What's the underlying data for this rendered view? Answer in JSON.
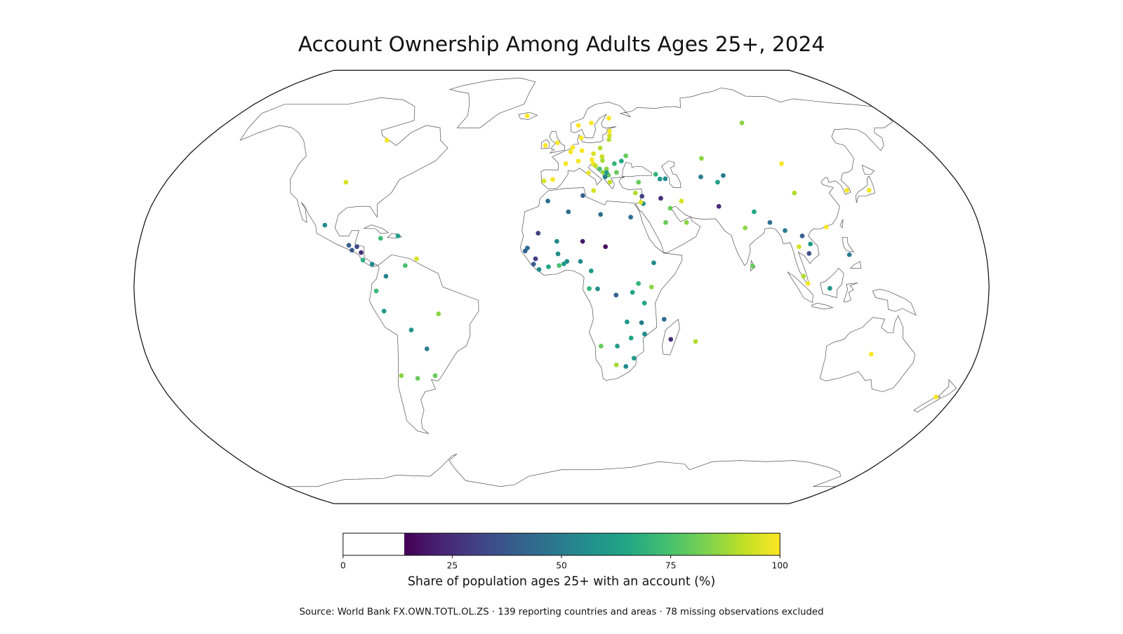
{
  "chart_data": {
    "type": "map",
    "title": "Account Ownership Among Adults Ages 25+, 2024",
    "projection": "robinson",
    "colormap": "viridis",
    "clim": [
      14,
      100
    ],
    "colorbar_lim": [
      0,
      100
    ],
    "colorbar_ticks": [
      0,
      25,
      50,
      75,
      100
    ],
    "colorbar_label": "Share of population ages 25+ with an account (%)",
    "source": "Source: World Bank FX.OWN.TOTL.OL.ZS · 139 reporting countries and areas · 78 missing observations excluded",
    "lon": [
      -88,
      -98,
      -102,
      -90.5,
      -87,
      -89,
      -85,
      -84,
      -80,
      -70,
      -77.3,
      -74,
      -66,
      -61.3,
      -78,
      -75,
      -64,
      -52,
      -58,
      -71,
      -64,
      -56,
      -19,
      -2,
      -8,
      2,
      -4,
      -8,
      4.5,
      5.5,
      10,
      10,
      9,
      16,
      26,
      25,
      24.6,
      24,
      19,
      15.5,
      19.5,
      14.5,
      8,
      12.5,
      15,
      16,
      19.5,
      25,
      25.5,
      21,
      17.8,
      21.7,
      20,
      19.3,
      22,
      28.5,
      31,
      20.9,
      33,
      14.4,
      35,
      43.5,
      45,
      47.5,
      97,
      67,
      64,
      74.5,
      71,
      104,
      104,
      128,
      138,
      35.8,
      36,
      35,
      44,
      53,
      45,
      54,
      47.6,
      30,
      69,
      79,
      84,
      90,
      80.7,
      96,
      101,
      103,
      105,
      106,
      102,
      122,
      113,
      103.8,
      114,
      134,
      172,
      -6,
      3,
      9.5,
      17,
      -10,
      -14.5,
      -15.4,
      -11,
      -11.8,
      -9.5,
      -5.5,
      -2,
      -1.5,
      -1,
      1,
      2.3,
      9,
      8,
      18.7,
      12.5,
      11.7,
      15.2,
      23,
      32.4,
      37.9,
      35,
      39,
      34,
      27.8,
      35.5,
      29.8,
      24,
      17,
      24,
      28.2,
      31.5,
      46.8,
      43.5,
      57.5,
      29.9
    ],
    "lat": [
      55,
      39,
      23,
      15.5,
      15,
      13.7,
      12.8,
      10,
      8.5,
      19,
      18.1,
      4,
      8,
      10.5,
      -1.5,
      -9,
      -16,
      -10,
      -23,
      -33,
      -34,
      -33,
      65,
      54,
      53,
      46,
      40,
      39.5,
      50.5,
      52.2,
      51,
      56,
      61,
      62,
      64,
      58.7,
      56.9,
      55.3,
      52,
      49.8,
      48.7,
      47.5,
      47,
      42.5,
      46,
      45.2,
      47.2,
      46,
      42.7,
      44,
      44,
      41.6,
      41,
      42.7,
      39,
      47,
      49,
      42.6,
      35,
      35.9,
      39,
      42,
      40.2,
      40.3,
      62,
      48,
      41,
      41.5,
      39,
      46,
      35,
      36,
      36,
      33.8,
      31,
      31.5,
      33,
      32,
      24,
      24,
      29.3,
      26,
      30,
      22,
      28,
      24,
      7.8,
      21,
      15,
      19,
      12.5,
      16,
      4,
      12,
      -0.5,
      1.3,
      22.3,
      -25,
      -41,
      32,
      28,
      34,
      27,
      20,
      14.5,
      13.4,
      10.5,
      8.5,
      6.5,
      7.5,
      17,
      12.3,
      8,
      8.6,
      9.5,
      17,
      9.5,
      15,
      6,
      -0.6,
      -0.7,
      -3,
      1.3,
      0,
      -6,
      9,
      -13.3,
      -13,
      -17.5,
      -19,
      -22,
      -22,
      -29,
      -29.6,
      -26.5,
      -19.5,
      -12,
      -20.3,
      -2
    ],
    "values": [
      99,
      95,
      55,
      40,
      33,
      38,
      25,
      68,
      55,
      62,
      72,
      52,
      75,
      95,
      72,
      60,
      58,
      85,
      50,
      85,
      80,
      80,
      100,
      100,
      100,
      99,
      99,
      95,
      99,
      100,
      100,
      100,
      100,
      100,
      100,
      99,
      95,
      90,
      90,
      95,
      93,
      100,
      99,
      97,
      99,
      92,
      88,
      70,
      80,
      85,
      75,
      80,
      50,
      85,
      92,
      65,
      80,
      60,
      90,
      95,
      80,
      70,
      60,
      55,
      85,
      85,
      50,
      50,
      62,
      99,
      90,
      99,
      99,
      30,
      55,
      95,
      25,
      95,
      80,
      85,
      80,
      45,
      25,
      85,
      65,
      45,
      80,
      50,
      95,
      40,
      35,
      60,
      90,
      50,
      60,
      99,
      99,
      100,
      100,
      45,
      45,
      40,
      45,
      30,
      45,
      40,
      30,
      40,
      55,
      65,
      55,
      55,
      75,
      60,
      55,
      20,
      55,
      18,
      60,
      70,
      55,
      40,
      70,
      85,
      65,
      55,
      50,
      60,
      55,
      65,
      60,
      80,
      88,
      55,
      60,
      25,
      45,
      90,
      65
    ]
  }
}
